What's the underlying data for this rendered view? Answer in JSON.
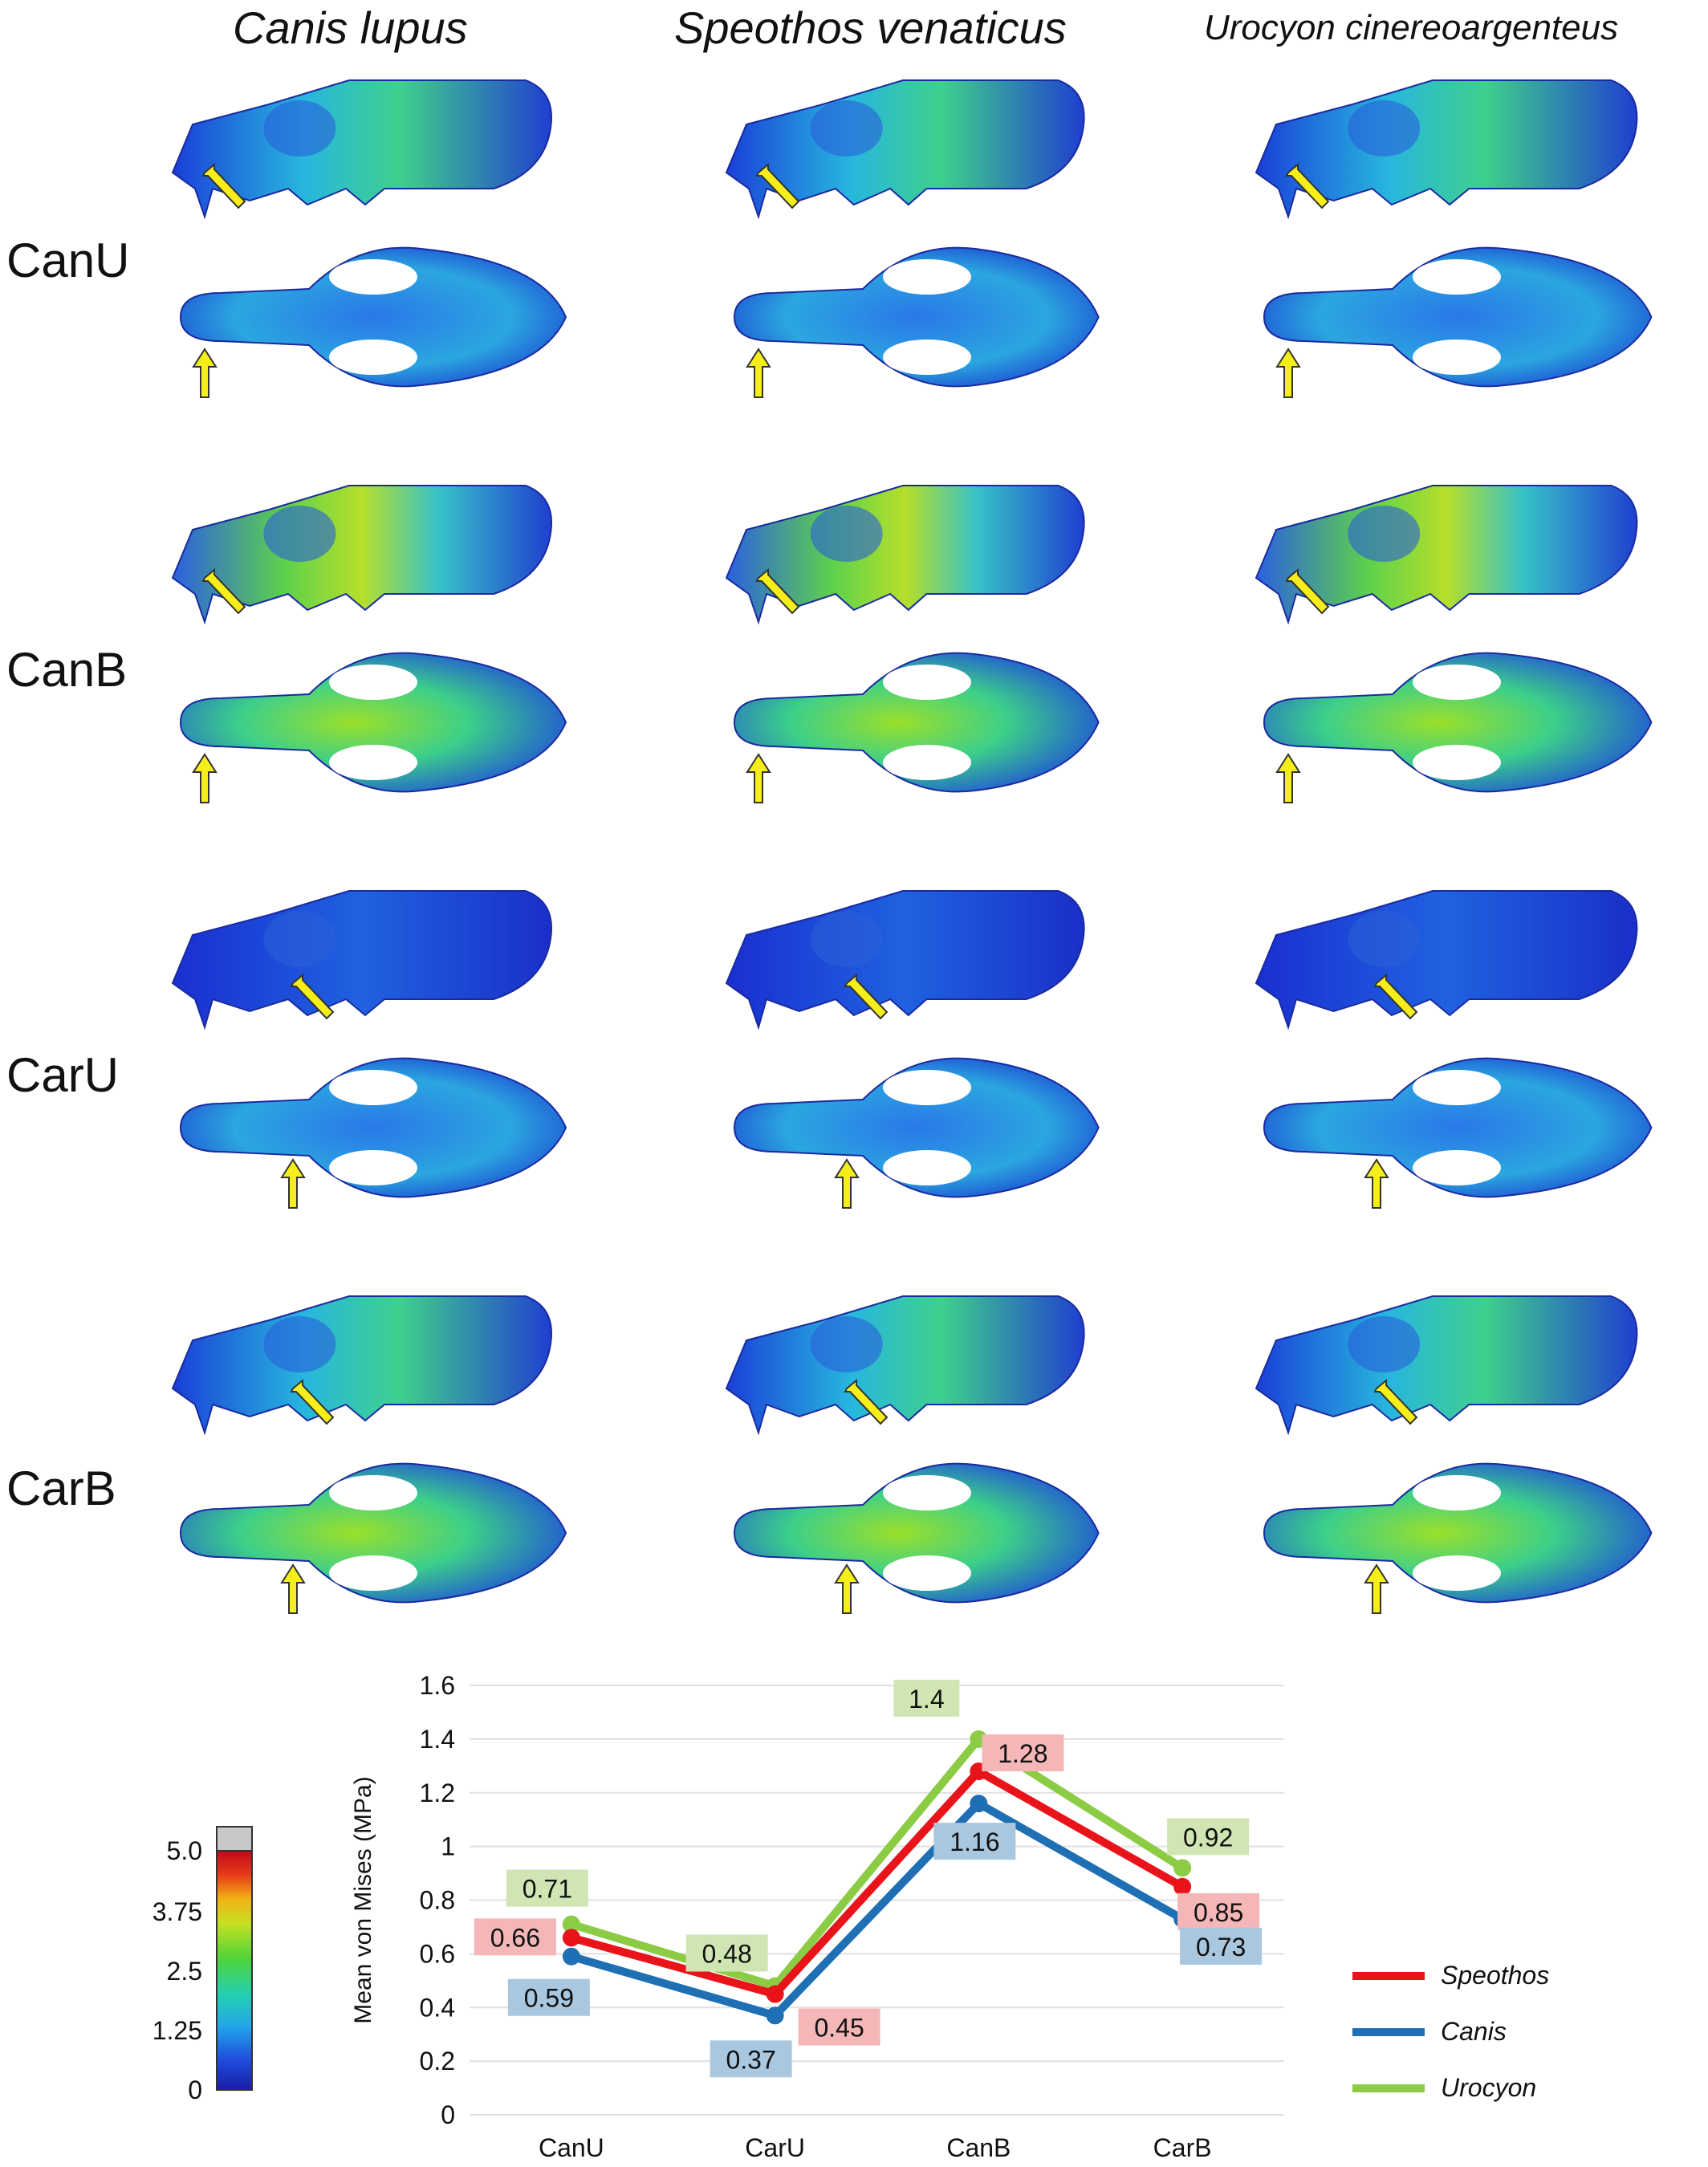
{
  "columns": [
    "Canis lupus",
    "Speothos venaticus",
    "Urocyon cinereoargenteus"
  ],
  "rows": [
    "CanU",
    "CanB",
    "CarU",
    "CarB"
  ],
  "colorbar": {
    "ticks": [
      "5.0",
      "3.75",
      "2.5",
      "1.25",
      "0"
    ],
    "colors": [
      "#1a1aa8",
      "#1f6fe0",
      "#22c1e0",
      "#2fd67a",
      "#9be02a",
      "#f2e21a",
      "#f28a12",
      "#e81a1a",
      "#c80a1a"
    ],
    "overflow_color": "#c8c8c8"
  },
  "chart_data": {
    "type": "line",
    "categories": [
      "CanU",
      "CarU",
      "CanB",
      "CarB"
    ],
    "ylabel": "Mean von Mises (MPa)",
    "yticks": [
      "0",
      "0.2",
      "0.4",
      "0.6",
      "0.8",
      "1",
      "1.2",
      "1.4",
      "1.6"
    ],
    "ylim": [
      0,
      1.6
    ],
    "grid": true,
    "legend_placement": "bottom-right",
    "series": [
      {
        "name": "Speothos",
        "color": "#e8141a",
        "values": [
          0.66,
          0.45,
          1.28,
          0.85
        ],
        "label_bg": "#f4b6b6"
      },
      {
        "name": "Canis",
        "color": "#1f6fb4",
        "values": [
          0.59,
          0.37,
          1.16,
          0.73
        ],
        "label_bg": "#a9c8e0"
      },
      {
        "name": "Urocyon",
        "color": "#8ccc45",
        "values": [
          0.71,
          0.48,
          1.4,
          0.92
        ],
        "label_bg": "#cfe6b3"
      }
    ]
  }
}
